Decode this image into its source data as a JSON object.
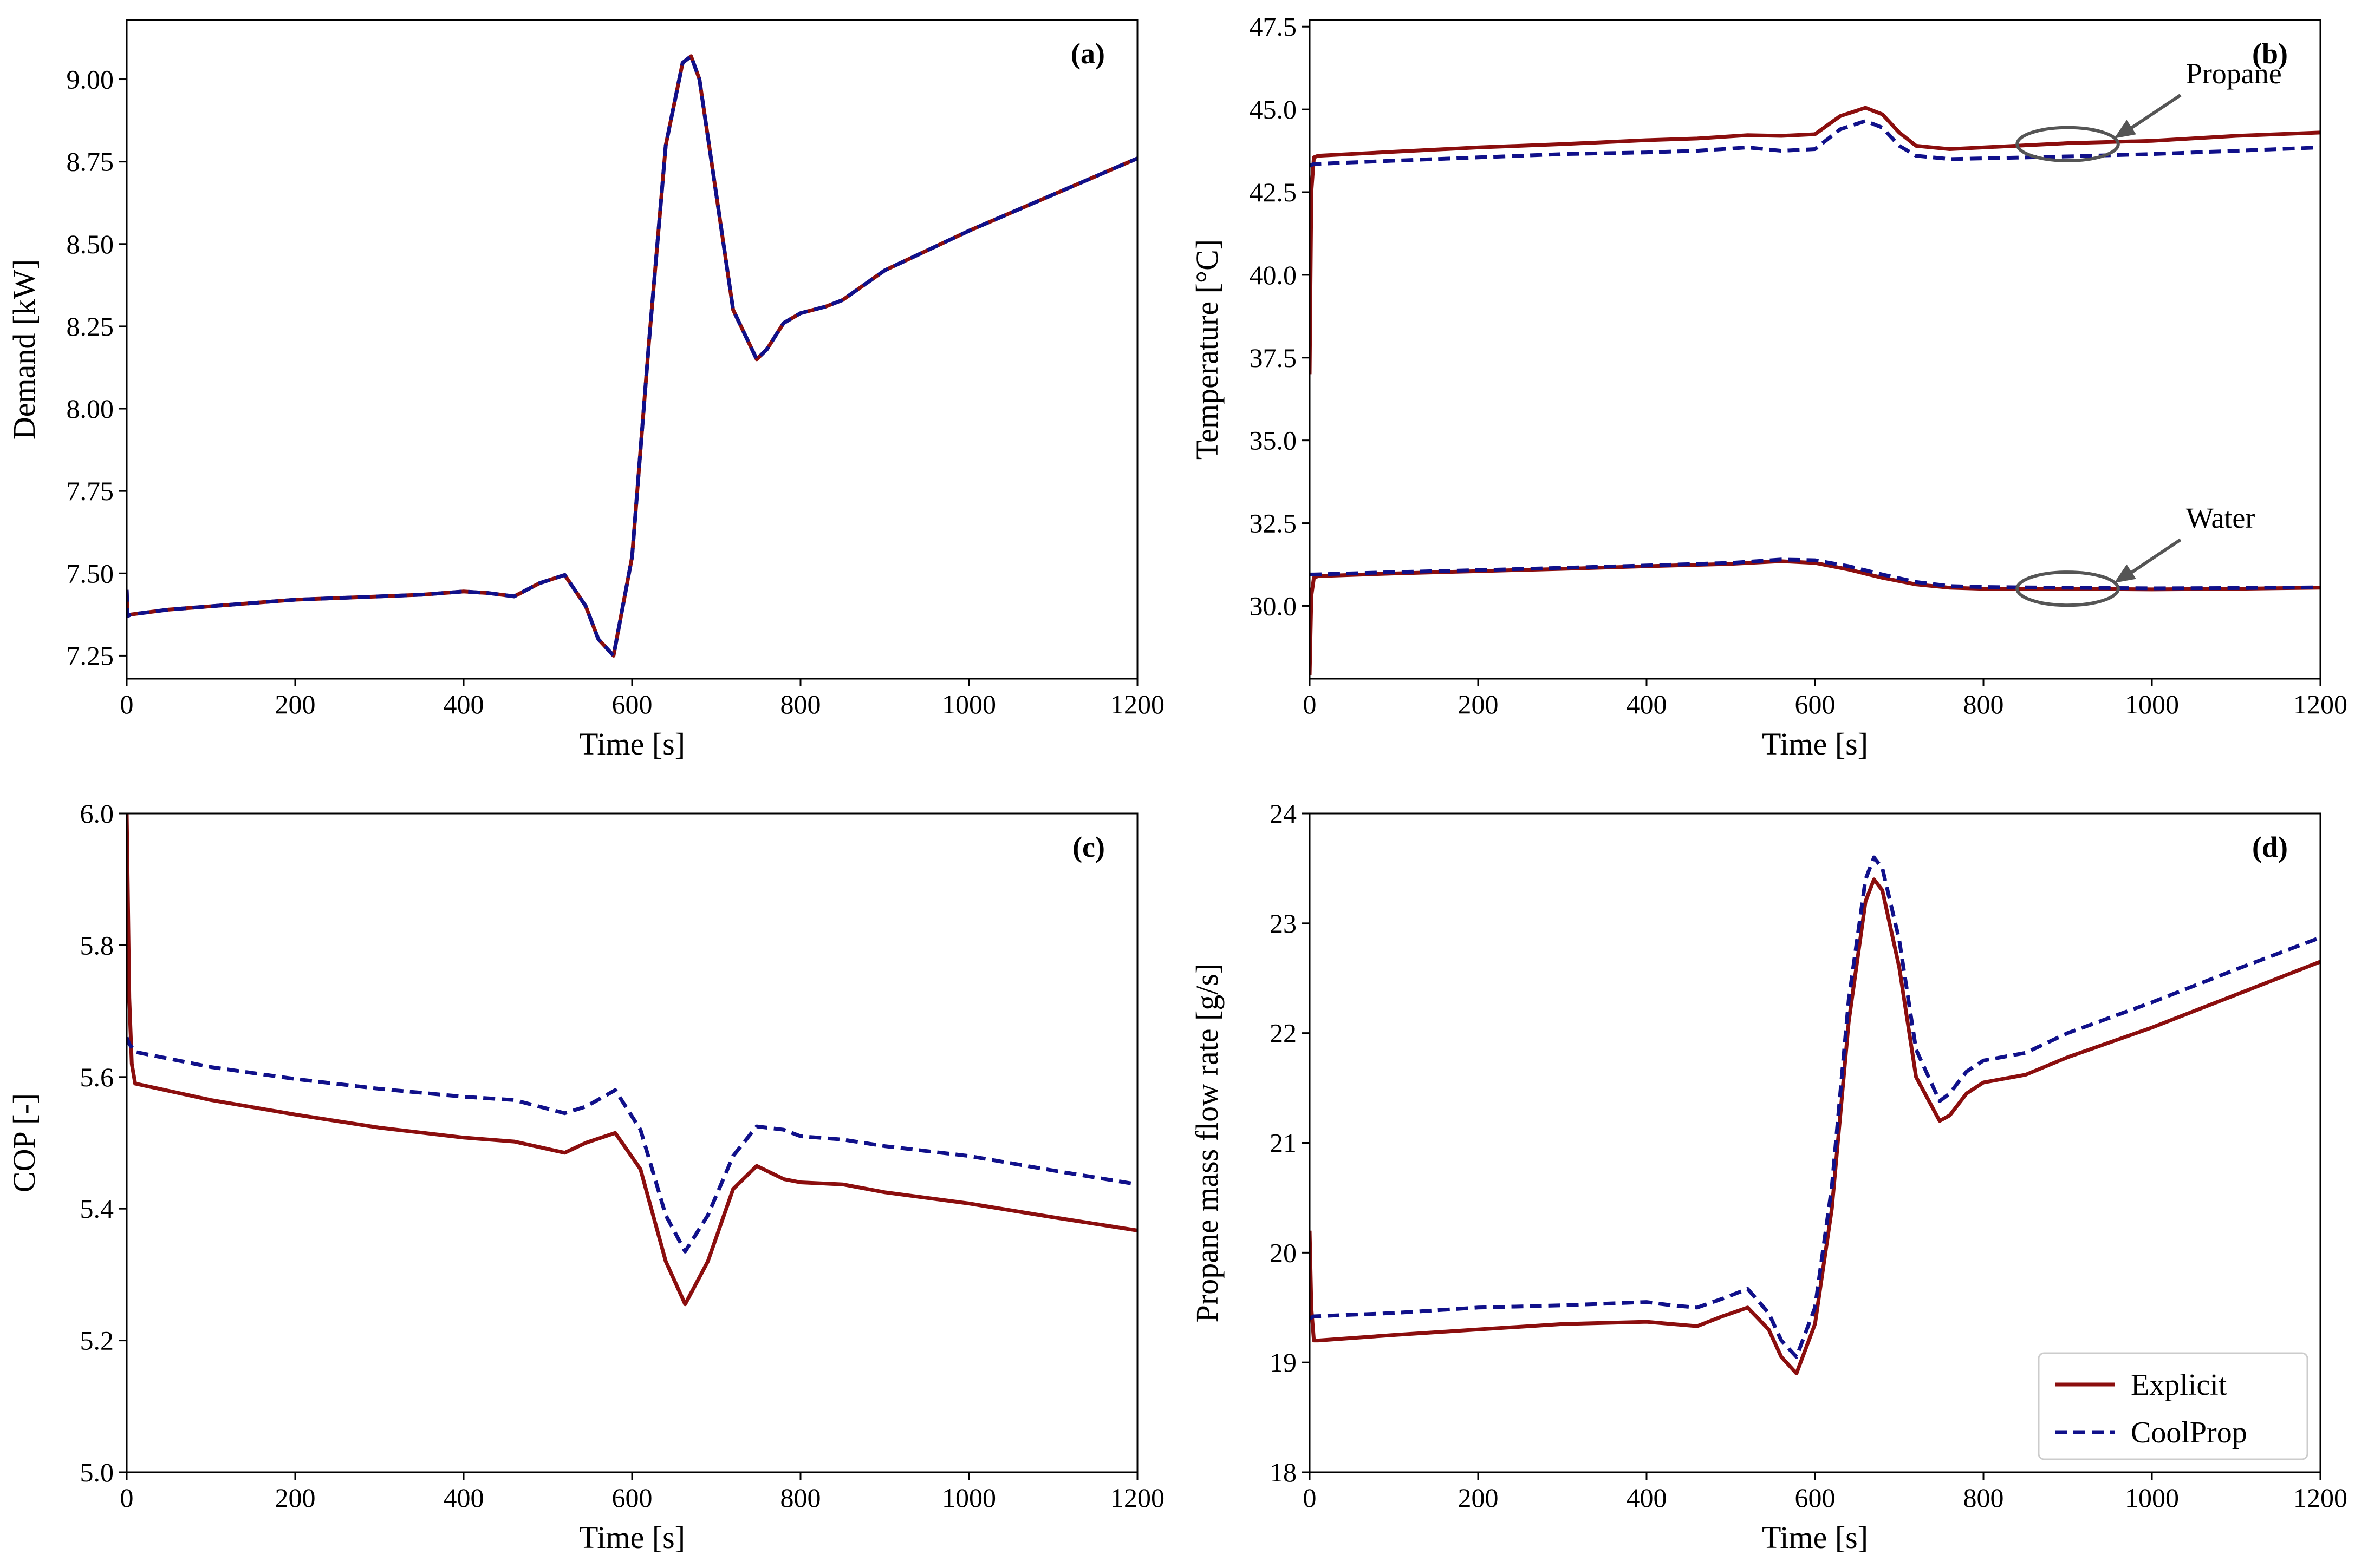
{
  "figure": {
    "legend": {
      "placement": "bottom-right of panel (d)",
      "entries": [
        {
          "label": "Explicit",
          "color": "#8b0e0e",
          "style": "solid"
        },
        {
          "label": "CoolProp",
          "color": "#10108a",
          "style": "dashed"
        }
      ]
    }
  },
  "chart_data": [
    {
      "id": "a",
      "type": "line",
      "panel_label": "(a)",
      "xlabel": "Time [s]",
      "ylabel": "Demand [kW]",
      "xlim": [
        0,
        1200
      ],
      "ylim": [
        7.18,
        9.18
      ],
      "xticks": [
        0,
        200,
        400,
        600,
        800,
        1000,
        1200
      ],
      "yticks": [
        7.25,
        7.5,
        7.75,
        8.0,
        8.25,
        8.5,
        8.75,
        9.0
      ],
      "ytick_labels": [
        "7.25",
        "7.50",
        "7.75",
        "8.00",
        "8.25",
        "8.50",
        "8.75",
        "9.00"
      ],
      "series": [
        {
          "name": "Explicit",
          "color": "#8b0e0e",
          "style": "solid",
          "x": [
            0,
            1,
            5,
            50,
            100,
            200,
            300,
            350,
            400,
            430,
            460,
            490,
            520,
            545,
            560,
            578,
            600,
            620,
            640,
            660,
            670,
            680,
            700,
            720,
            748,
            760,
            780,
            800,
            830,
            850,
            900,
            1000,
            1100,
            1200
          ],
          "y": [
            7.45,
            7.37,
            7.375,
            7.39,
            7.4,
            7.42,
            7.43,
            7.435,
            7.445,
            7.44,
            7.43,
            7.47,
            7.495,
            7.4,
            7.3,
            7.25,
            7.55,
            8.2,
            8.8,
            9.05,
            9.07,
            9.0,
            8.65,
            8.3,
            8.15,
            8.18,
            8.26,
            8.29,
            8.31,
            8.33,
            8.42,
            8.54,
            8.65,
            8.76
          ]
        },
        {
          "name": "CoolProp",
          "color": "#10108a",
          "style": "dashed",
          "x": [
            0,
            1,
            5,
            50,
            100,
            200,
            300,
            350,
            400,
            430,
            460,
            490,
            520,
            545,
            560,
            578,
            600,
            620,
            640,
            660,
            670,
            680,
            700,
            720,
            748,
            760,
            780,
            800,
            830,
            850,
            900,
            1000,
            1100,
            1200
          ],
          "y": [
            7.45,
            7.37,
            7.375,
            7.39,
            7.4,
            7.42,
            7.43,
            7.435,
            7.445,
            7.44,
            7.43,
            7.47,
            7.495,
            7.4,
            7.3,
            7.25,
            7.55,
            8.2,
            8.8,
            9.05,
            9.07,
            9.0,
            8.65,
            8.3,
            8.15,
            8.18,
            8.26,
            8.29,
            8.31,
            8.33,
            8.42,
            8.54,
            8.65,
            8.76
          ]
        }
      ]
    },
    {
      "id": "b",
      "type": "line",
      "panel_label": "(b)",
      "xlabel": "Time [s]",
      "ylabel": "Temperature [°C]",
      "xlim": [
        0,
        1200
      ],
      "ylim": [
        27.8,
        47.7
      ],
      "xticks": [
        0,
        200,
        400,
        600,
        800,
        1000,
        1200
      ],
      "yticks": [
        30.0,
        32.5,
        35.0,
        37.5,
        40.0,
        42.5,
        45.0,
        47.5
      ],
      "ytick_labels": [
        "30.0",
        "32.5",
        "35.0",
        "37.5",
        "40.0",
        "42.5",
        "45.0",
        "47.5"
      ],
      "series": [
        {
          "name": "Explicit (propane)",
          "color": "#8b0e0e",
          "style": "solid",
          "x": [
            0,
            2,
            5,
            10,
            100,
            200,
            300,
            400,
            460,
            520,
            560,
            600,
            630,
            660,
            680,
            700,
            720,
            760,
            800,
            900,
            1000,
            1100,
            1200
          ],
          "y": [
            37.0,
            42.5,
            43.55,
            43.6,
            43.72,
            43.85,
            43.95,
            44.07,
            44.12,
            44.22,
            44.2,
            44.25,
            44.8,
            45.05,
            44.85,
            44.3,
            43.9,
            43.8,
            43.85,
            43.98,
            44.05,
            44.2,
            44.3
          ]
        },
        {
          "name": "CoolProp (propane)",
          "color": "#10108a",
          "style": "dashed",
          "x": [
            0,
            5,
            100,
            200,
            300,
            400,
            460,
            520,
            560,
            600,
            630,
            660,
            680,
            700,
            720,
            760,
            800,
            900,
            1000,
            1100,
            1200
          ],
          "y": [
            43.3,
            43.35,
            43.45,
            43.55,
            43.65,
            43.7,
            43.75,
            43.85,
            43.75,
            43.8,
            44.4,
            44.65,
            44.45,
            43.9,
            43.6,
            43.5,
            43.52,
            43.58,
            43.65,
            43.75,
            43.85
          ]
        },
        {
          "name": "Explicit (water)",
          "color": "#8b0e0e",
          "style": "solid",
          "x": [
            0,
            2,
            5,
            10,
            100,
            200,
            300,
            400,
            500,
            560,
            600,
            640,
            680,
            720,
            760,
            800,
            900,
            1000,
            1100,
            1200
          ],
          "y": [
            27.9,
            30.3,
            30.85,
            30.9,
            30.98,
            31.05,
            31.12,
            31.2,
            31.27,
            31.35,
            31.3,
            31.1,
            30.85,
            30.65,
            30.55,
            30.52,
            30.52,
            30.5,
            30.52,
            30.55
          ]
        },
        {
          "name": "CoolProp (water)",
          "color": "#10108a",
          "style": "dashed",
          "x": [
            0,
            5,
            100,
            200,
            300,
            400,
            500,
            560,
            600,
            640,
            680,
            720,
            760,
            800,
            900,
            1000,
            1100,
            1200
          ],
          "y": [
            30.95,
            30.95,
            31.02,
            31.08,
            31.15,
            31.22,
            31.3,
            31.4,
            31.38,
            31.2,
            30.95,
            30.72,
            30.6,
            30.57,
            30.55,
            30.53,
            30.54,
            30.56
          ]
        }
      ],
      "annotations": [
        {
          "text": "Propane",
          "target": [
            900,
            43.95
          ],
          "ellipse_halfwidth": 60,
          "ellipse_halfheight": 0.5
        },
        {
          "text": "Water",
          "target": [
            900,
            30.52
          ],
          "ellipse_halfwidth": 60,
          "ellipse_halfheight": 0.5
        }
      ]
    },
    {
      "id": "c",
      "type": "line",
      "panel_label": "(c)",
      "xlabel": "Time [s]",
      "ylabel": "COP [-]",
      "xlim": [
        0,
        1200
      ],
      "ylim": [
        5.0,
        6.0
      ],
      "xticks": [
        0,
        200,
        400,
        600,
        800,
        1000,
        1200
      ],
      "yticks": [
        5.0,
        5.2,
        5.4,
        5.6,
        5.8,
        6.0
      ],
      "ytick_labels": [
        "5.0",
        "5.2",
        "5.4",
        "5.6",
        "5.8",
        "6.0"
      ],
      "series": [
        {
          "name": "Explicit",
          "color": "#8b0e0e",
          "style": "solid",
          "x": [
            0,
            3,
            6,
            10,
            100,
            200,
            300,
            400,
            460,
            520,
            545,
            580,
            610,
            640,
            663,
            690,
            720,
            748,
            780,
            800,
            850,
            900,
            1000,
            1100,
            1200
          ],
          "y": [
            6.0,
            5.72,
            5.62,
            5.59,
            5.565,
            5.543,
            5.523,
            5.508,
            5.502,
            5.485,
            5.5,
            5.515,
            5.46,
            5.32,
            5.255,
            5.32,
            5.43,
            5.465,
            5.445,
            5.44,
            5.437,
            5.425,
            5.408,
            5.387,
            5.367
          ]
        },
        {
          "name": "CoolProp",
          "color": "#10108a",
          "style": "dashed",
          "x": [
            0,
            3,
            6,
            10,
            100,
            200,
            300,
            400,
            460,
            520,
            545,
            580,
            610,
            640,
            663,
            690,
            720,
            748,
            780,
            800,
            850,
            900,
            1000,
            1100,
            1200
          ],
          "y": [
            5.66,
            5.65,
            5.645,
            5.638,
            5.615,
            5.597,
            5.582,
            5.57,
            5.565,
            5.545,
            5.555,
            5.58,
            5.52,
            5.39,
            5.335,
            5.39,
            5.48,
            5.525,
            5.52,
            5.51,
            5.505,
            5.495,
            5.48,
            5.458,
            5.437
          ]
        }
      ]
    },
    {
      "id": "d",
      "type": "line",
      "panel_label": "(d)",
      "xlabel": "Time [s]",
      "ylabel": "Propane mass flow rate [g/s]",
      "xlim": [
        0,
        1200
      ],
      "ylim": [
        18.0,
        24.0
      ],
      "xticks": [
        0,
        200,
        400,
        600,
        800,
        1000,
        1200
      ],
      "yticks": [
        18,
        19,
        20,
        21,
        22,
        23,
        24
      ],
      "ytick_labels": [
        "18",
        "19",
        "20",
        "21",
        "22",
        "23",
        "24"
      ],
      "series": [
        {
          "name": "Explicit",
          "color": "#8b0e0e",
          "style": "solid",
          "x": [
            0,
            2,
            5,
            10,
            100,
            200,
            300,
            400,
            430,
            460,
            490,
            520,
            545,
            560,
            578,
            600,
            620,
            640,
            660,
            670,
            680,
            700,
            720,
            748,
            760,
            780,
            800,
            850,
            900,
            1000,
            1100,
            1200
          ],
          "y": [
            20.2,
            19.5,
            19.2,
            19.2,
            19.25,
            19.3,
            19.35,
            19.37,
            19.35,
            19.33,
            19.42,
            19.5,
            19.3,
            19.05,
            18.9,
            19.35,
            20.4,
            22.1,
            23.2,
            23.4,
            23.3,
            22.6,
            21.6,
            21.2,
            21.25,
            21.45,
            21.55,
            21.62,
            21.78,
            22.05,
            22.35,
            22.65
          ]
        },
        {
          "name": "CoolProp",
          "color": "#10108a",
          "style": "dashed",
          "x": [
            0,
            5,
            100,
            200,
            300,
            400,
            430,
            460,
            490,
            520,
            545,
            560,
            578,
            600,
            620,
            640,
            660,
            670,
            680,
            700,
            720,
            748,
            760,
            780,
            800,
            850,
            900,
            1000,
            1100,
            1200
          ],
          "y": [
            19.4,
            19.42,
            19.45,
            19.5,
            19.52,
            19.55,
            19.52,
            19.5,
            19.58,
            19.67,
            19.45,
            19.2,
            19.05,
            19.5,
            20.6,
            22.3,
            23.4,
            23.6,
            23.5,
            22.85,
            21.85,
            21.38,
            21.45,
            21.65,
            21.75,
            21.82,
            22.0,
            22.28,
            22.58,
            22.87
          ]
        }
      ]
    }
  ]
}
